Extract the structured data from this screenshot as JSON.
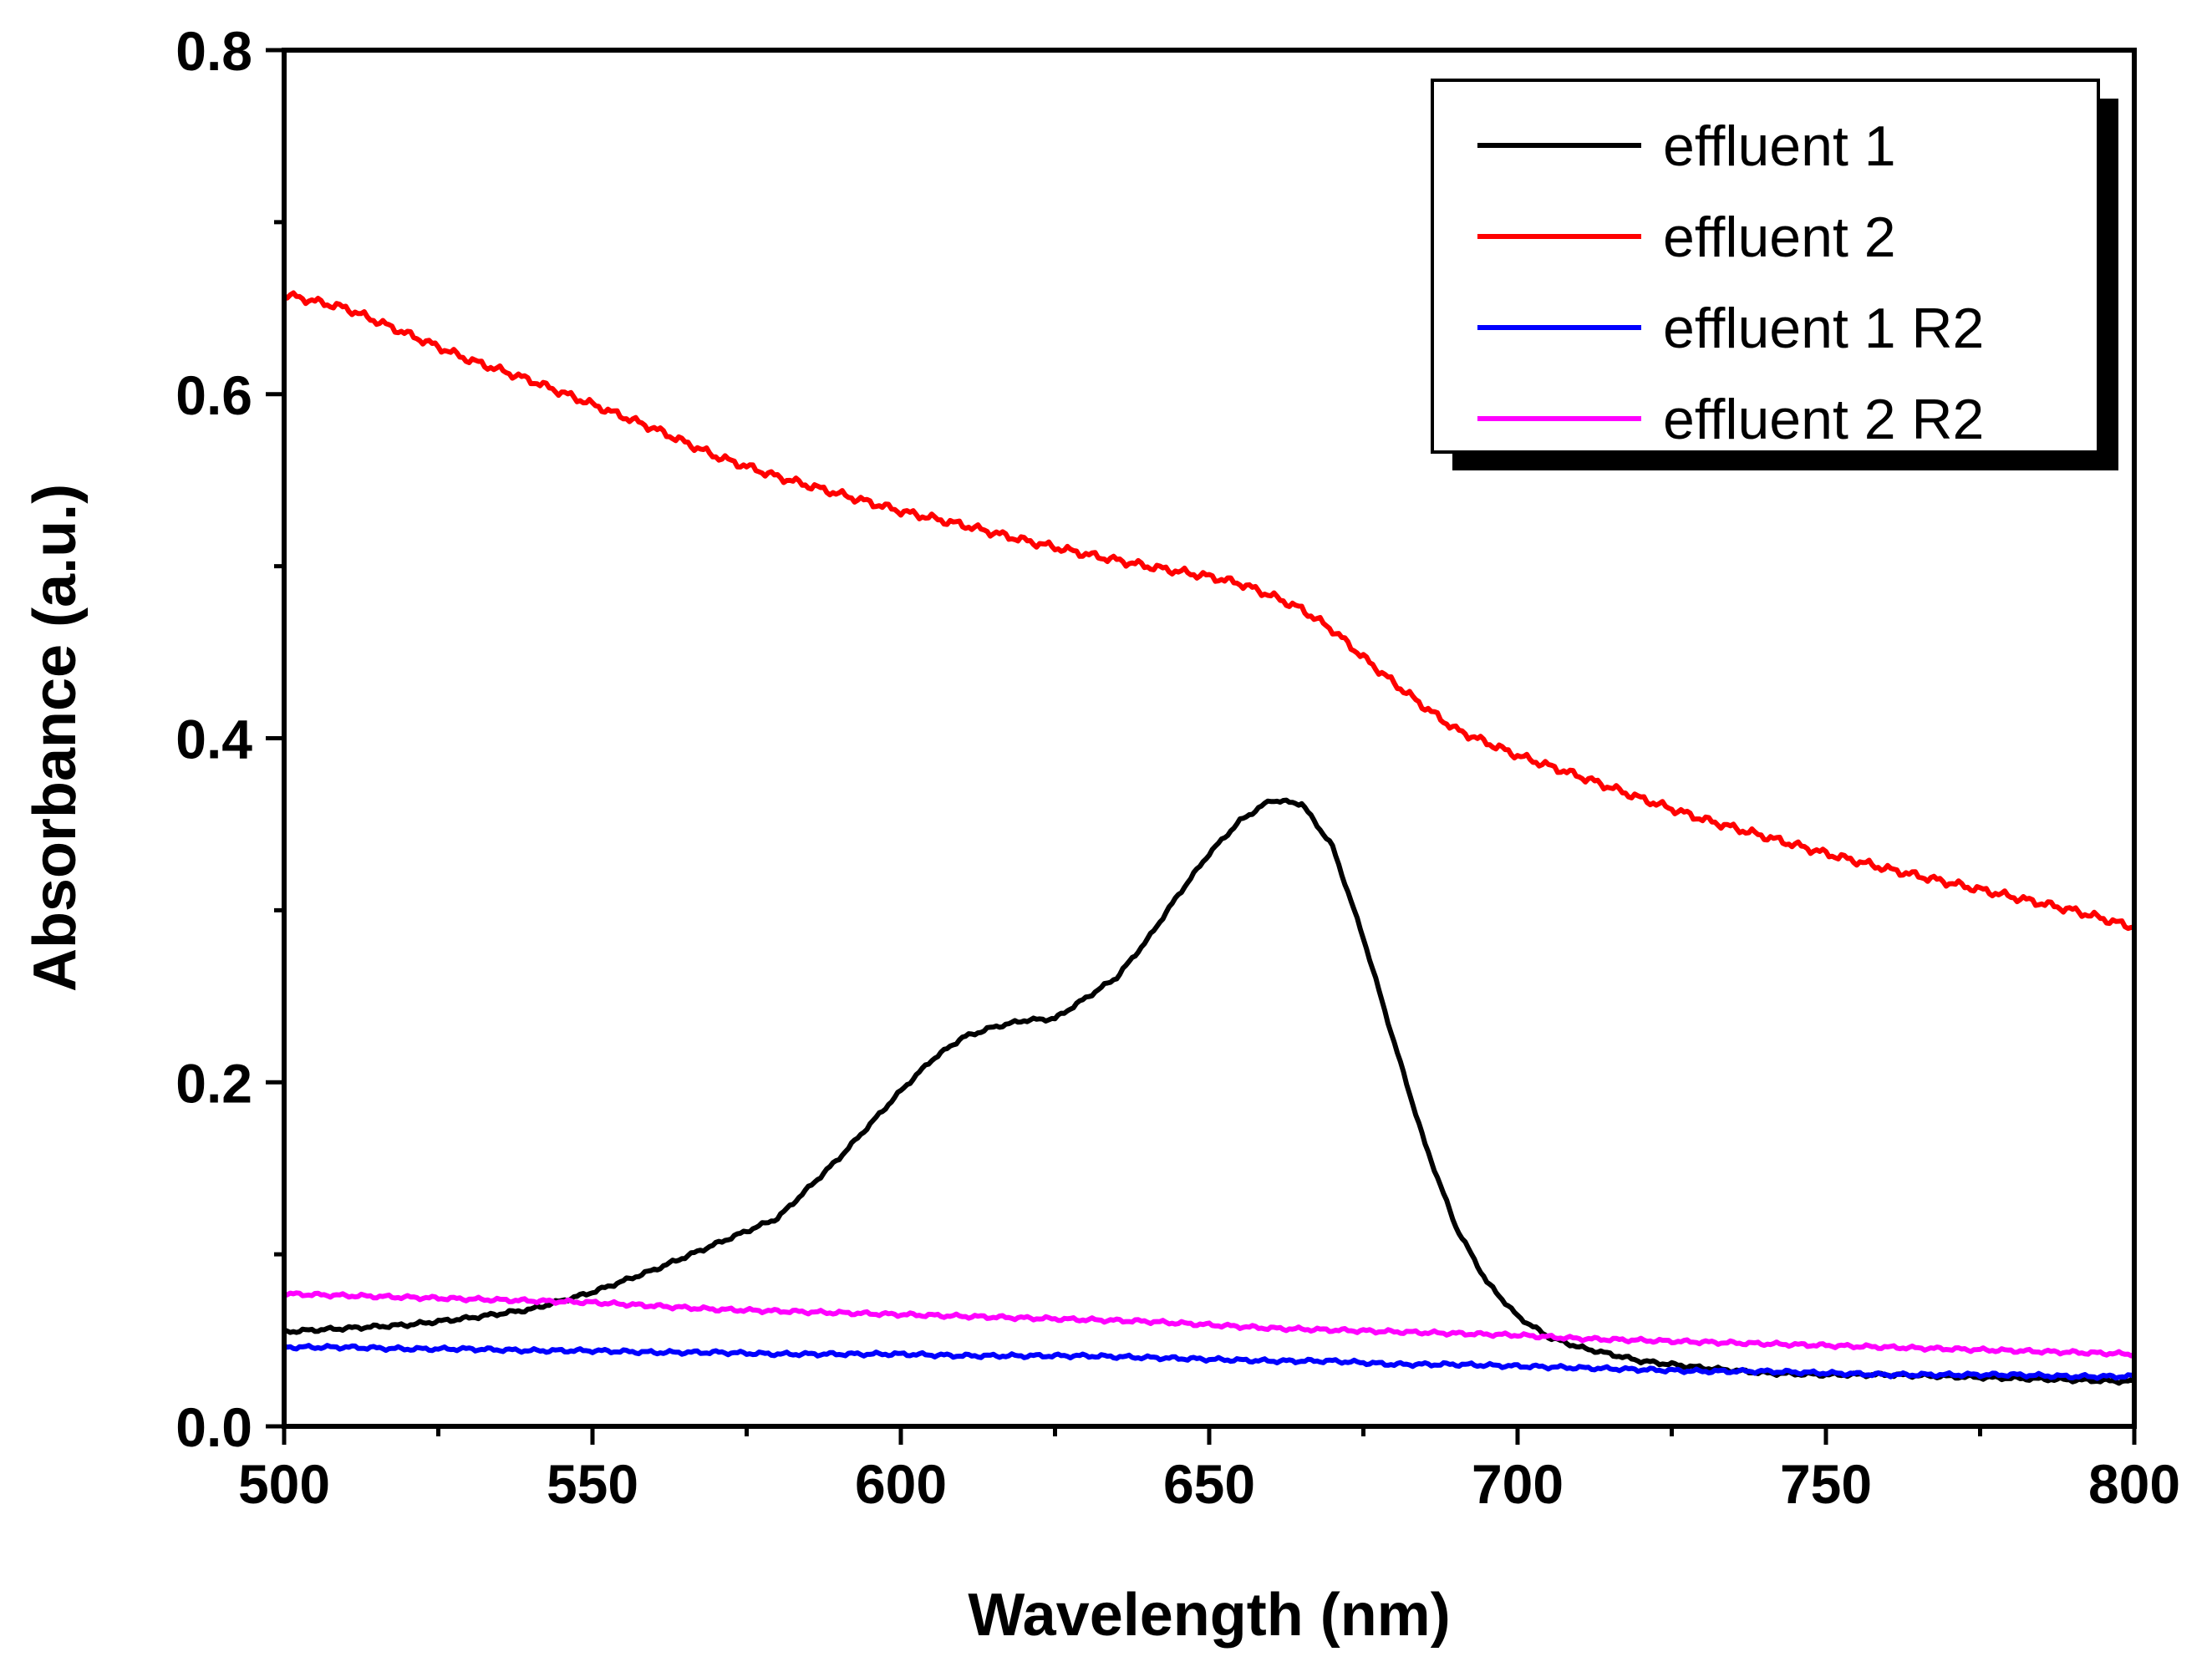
{
  "chart_data": {
    "type": "line",
    "title": "",
    "xlabel": "Wavelength (nm)",
    "ylabel": "Absorbance (a.u.)",
    "xlim": [
      500,
      800
    ],
    "ylim": [
      0.0,
      0.8
    ],
    "x_ticks": [
      500,
      550,
      600,
      650,
      700,
      750,
      800
    ],
    "x_tick_labels": [
      "500",
      "550",
      "600",
      "650",
      "700",
      "750",
      "800"
    ],
    "y_ticks": [
      0.0,
      0.2,
      0.4,
      0.6,
      0.8
    ],
    "y_tick_labels": [
      "0.0",
      "0.2",
      "0.4",
      "0.6",
      "0.8"
    ],
    "grid": false,
    "legend_position": "top-right",
    "series": [
      {
        "name": "effluent 1",
        "color": "#000000",
        "points": [
          [
            500,
            0.055
          ],
          [
            510,
            0.057
          ],
          [
            520,
            0.059
          ],
          [
            530,
            0.063
          ],
          [
            540,
            0.068
          ],
          [
            550,
            0.078
          ],
          [
            560,
            0.091
          ],
          [
            570,
            0.106
          ],
          [
            580,
            0.121
          ],
          [
            590,
            0.156
          ],
          [
            600,
            0.195
          ],
          [
            605,
            0.213
          ],
          [
            610,
            0.226
          ],
          [
            615,
            0.232
          ],
          [
            620,
            0.236
          ],
          [
            625,
            0.237
          ],
          [
            630,
            0.249
          ],
          [
            635,
            0.261
          ],
          [
            640,
            0.283
          ],
          [
            645,
            0.309
          ],
          [
            650,
            0.333
          ],
          [
            655,
            0.352
          ],
          [
            660,
            0.364
          ],
          [
            665,
            0.362
          ],
          [
            670,
            0.337
          ],
          [
            675,
            0.284
          ],
          [
            680,
            0.223
          ],
          [
            685,
            0.164
          ],
          [
            690,
            0.116
          ],
          [
            695,
            0.084
          ],
          [
            700,
            0.064
          ],
          [
            705,
            0.052
          ],
          [
            710,
            0.046
          ],
          [
            720,
            0.038
          ],
          [
            730,
            0.034
          ],
          [
            740,
            0.031
          ],
          [
            750,
            0.03
          ],
          [
            760,
            0.03
          ],
          [
            770,
            0.029
          ],
          [
            780,
            0.028
          ],
          [
            790,
            0.027
          ],
          [
            800,
            0.026
          ]
        ]
      },
      {
        "name": "effluent 2",
        "color": "#ff0000",
        "points": [
          [
            500,
            0.658
          ],
          [
            510,
            0.65
          ],
          [
            520,
            0.635
          ],
          [
            530,
            0.62
          ],
          [
            540,
            0.608
          ],
          [
            550,
            0.594
          ],
          [
            560,
            0.58
          ],
          [
            570,
            0.564
          ],
          [
            580,
            0.552
          ],
          [
            590,
            0.542
          ],
          [
            600,
            0.532
          ],
          [
            610,
            0.524
          ],
          [
            620,
            0.515
          ],
          [
            630,
            0.507
          ],
          [
            640,
            0.5
          ],
          [
            650,
            0.494
          ],
          [
            655,
            0.49
          ],
          [
            660,
            0.483
          ],
          [
            665,
            0.475
          ],
          [
            670,
            0.463
          ],
          [
            675,
            0.447
          ],
          [
            680,
            0.432
          ],
          [
            685,
            0.418
          ],
          [
            690,
            0.405
          ],
          [
            700,
            0.39
          ],
          [
            710,
            0.378
          ],
          [
            720,
            0.365
          ],
          [
            730,
            0.353
          ],
          [
            740,
            0.343
          ],
          [
            750,
            0.333
          ],
          [
            760,
            0.324
          ],
          [
            770,
            0.316
          ],
          [
            780,
            0.308
          ],
          [
            790,
            0.3
          ],
          [
            800,
            0.29
          ]
        ]
      },
      {
        "name": "effluent 1 R2",
        "color": "#0000ff",
        "points": [
          [
            500,
            0.046
          ],
          [
            510,
            0.046
          ],
          [
            520,
            0.045
          ],
          [
            530,
            0.045
          ],
          [
            540,
            0.044
          ],
          [
            550,
            0.044
          ],
          [
            560,
            0.043
          ],
          [
            570,
            0.043
          ],
          [
            580,
            0.042
          ],
          [
            590,
            0.042
          ],
          [
            600,
            0.042
          ],
          [
            610,
            0.041
          ],
          [
            620,
            0.041
          ],
          [
            630,
            0.041
          ],
          [
            640,
            0.04
          ],
          [
            650,
            0.039
          ],
          [
            660,
            0.038
          ],
          [
            670,
            0.038
          ],
          [
            680,
            0.036
          ],
          [
            690,
            0.036
          ],
          [
            700,
            0.035
          ],
          [
            710,
            0.034
          ],
          [
            720,
            0.033
          ],
          [
            730,
            0.032
          ],
          [
            740,
            0.032
          ],
          [
            750,
            0.031
          ],
          [
            760,
            0.03
          ],
          [
            770,
            0.03
          ],
          [
            780,
            0.03
          ],
          [
            790,
            0.029
          ],
          [
            800,
            0.029
          ]
        ]
      },
      {
        "name": "effluent 2 R2",
        "color": "#ff00ff",
        "points": [
          [
            500,
            0.077
          ],
          [
            510,
            0.076
          ],
          [
            520,
            0.075
          ],
          [
            530,
            0.074
          ],
          [
            540,
            0.073
          ],
          [
            550,
            0.072
          ],
          [
            560,
            0.07
          ],
          [
            570,
            0.068
          ],
          [
            580,
            0.067
          ],
          [
            590,
            0.066
          ],
          [
            600,
            0.065
          ],
          [
            610,
            0.064
          ],
          [
            620,
            0.063
          ],
          [
            630,
            0.062
          ],
          [
            640,
            0.061
          ],
          [
            650,
            0.059
          ],
          [
            660,
            0.057
          ],
          [
            670,
            0.056
          ],
          [
            680,
            0.055
          ],
          [
            690,
            0.054
          ],
          [
            700,
            0.053
          ],
          [
            710,
            0.051
          ],
          [
            720,
            0.05
          ],
          [
            730,
            0.049
          ],
          [
            740,
            0.048
          ],
          [
            750,
            0.047
          ],
          [
            760,
            0.046
          ],
          [
            770,
            0.045
          ],
          [
            780,
            0.044
          ],
          [
            790,
            0.043
          ],
          [
            800,
            0.042
          ]
        ]
      }
    ]
  }
}
